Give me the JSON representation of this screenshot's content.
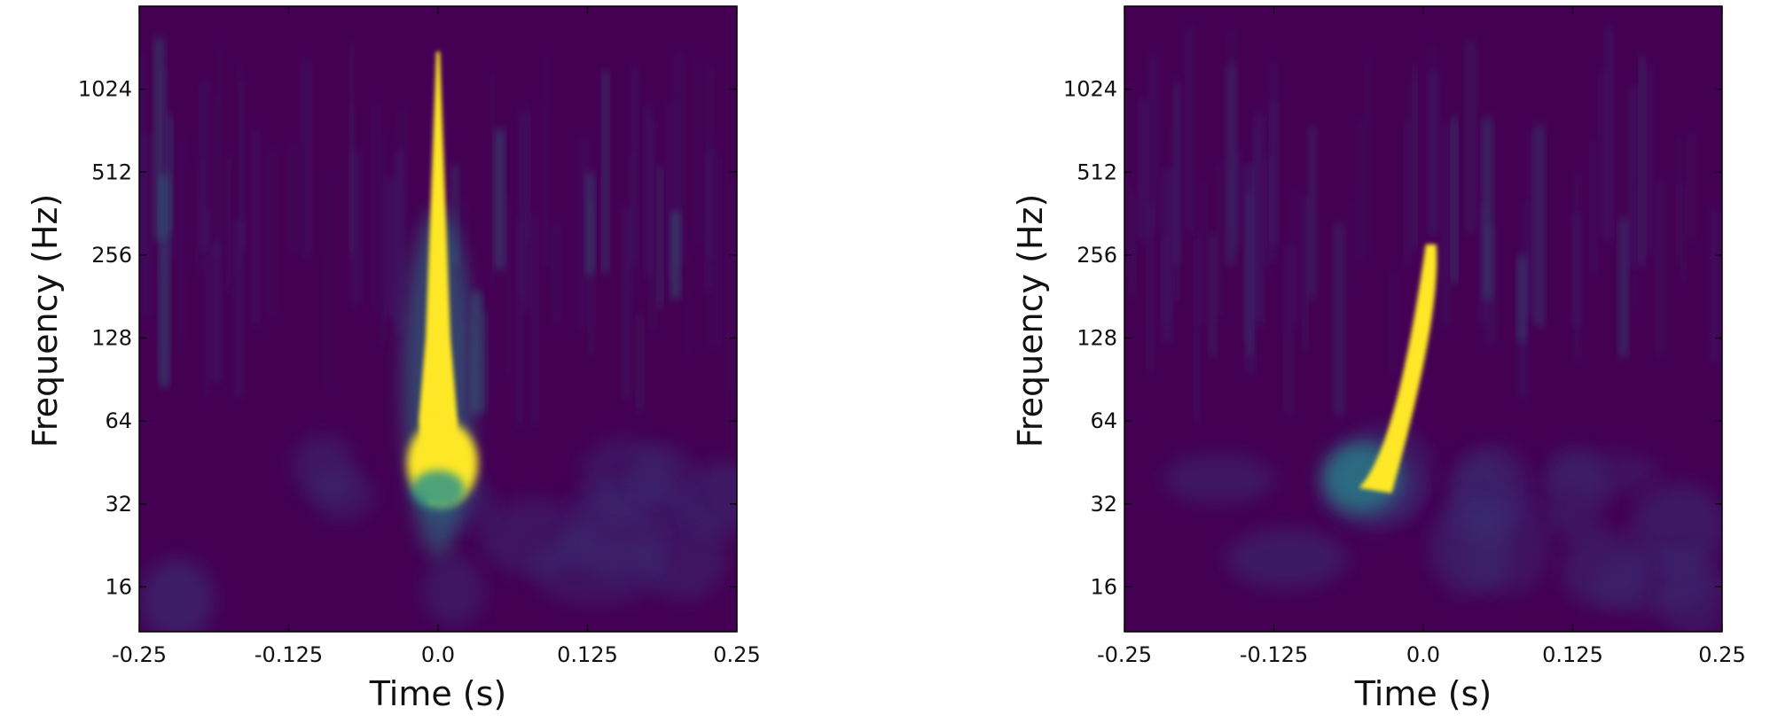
{
  "chart_data": [
    {
      "type": "heatmap",
      "xlabel": "Time (s)",
      "ylabel": "Frequency (Hz)",
      "x_ticks": [
        "-0.25",
        "-0.125",
        "0.0",
        "0.125",
        "0.25"
      ],
      "x_tick_values": [
        -0.25,
        -0.125,
        0.0,
        0.125,
        0.25
      ],
      "y_ticks": [
        "16",
        "32",
        "64",
        "128",
        "256",
        "512",
        "1024"
      ],
      "y_tick_values": [
        16,
        32,
        64,
        128,
        256,
        512,
        1024
      ],
      "xlim": [
        -0.25,
        0.25
      ],
      "ylim": [
        11,
        2048
      ],
      "y_scale": "log2",
      "colormap": "viridis",
      "grid": false,
      "features": [
        {
          "kind": "vertical-spike",
          "t": 0.0,
          "f_low": 32,
          "f_high": 1400,
          "intensity": 1.0
        },
        {
          "kind": "glow",
          "t": 0.0,
          "f": 45,
          "intensity": 1.0
        }
      ]
    },
    {
      "type": "heatmap",
      "xlabel": "Time (s)",
      "ylabel": "Frequency (Hz)",
      "x_ticks": [
        "-0.25",
        "-0.125",
        "0.0",
        "0.125",
        "0.25"
      ],
      "x_tick_values": [
        -0.25,
        -0.125,
        0.0,
        0.125,
        0.25
      ],
      "y_ticks": [
        "16",
        "32",
        "64",
        "128",
        "256",
        "512",
        "1024"
      ],
      "y_tick_values": [
        16,
        32,
        64,
        128,
        256,
        512,
        1024
      ],
      "xlim": [
        -0.25,
        0.25
      ],
      "ylim": [
        11,
        2048
      ],
      "y_scale": "log2",
      "colormap": "viridis",
      "grid": false,
      "features": [
        {
          "kind": "chirp",
          "t_start": -0.045,
          "f_start": 40,
          "t_end": 0.008,
          "f_end": 280,
          "intensity": 1.0
        }
      ]
    }
  ],
  "colors": {
    "background": "#440154",
    "low": "#3b2a6e",
    "mid": "#21918c",
    "high": "#fde725"
  }
}
